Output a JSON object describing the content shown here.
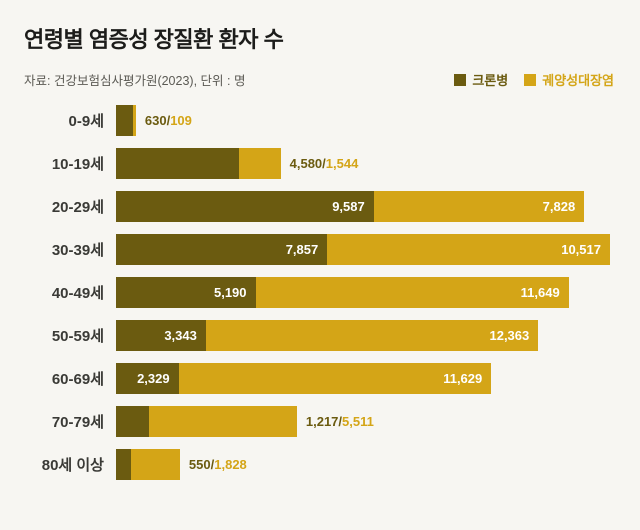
{
  "page": {
    "background": "#f7f6f2"
  },
  "chart_data": {
    "type": "bar",
    "orientation": "horizontal",
    "stacked": true,
    "title": "연령별 염증성 장질환 환자 수",
    "source": "자료: 건강보험심사평가원(2023), 단위 : 명",
    "unit": "명",
    "legend_position": "top-right",
    "grid": false,
    "xmax": 18374,
    "categories": [
      "0-9세",
      "10-19세",
      "20-29세",
      "30-39세",
      "40-49세",
      "50-59세",
      "60-69세",
      "70-79세",
      "80세 이상"
    ],
    "series": [
      {
        "name": "크론병",
        "color": "#6b5b10",
        "values": [
          630,
          4580,
          9587,
          7857,
          5190,
          3343,
          2329,
          1217,
          550
        ]
      },
      {
        "name": "궤양성대장염",
        "color": "#d4a517",
        "values": [
          109,
          1544,
          7828,
          10517,
          11649,
          12363,
          11629,
          5511,
          1828
        ]
      }
    ],
    "value_labels": [
      "630/109",
      "4,580/1,544",
      "9,587 | 7,828",
      "7,857 | 10,517",
      "5,190 | 11,649",
      "3,343 | 12,363",
      "2,329 | 11,629",
      "1,217/5,511",
      "550/1,828"
    ],
    "label_mode": [
      "outside",
      "outside",
      "inside",
      "inside",
      "inside",
      "inside",
      "inside",
      "outside",
      "outside"
    ],
    "inside_label_color": "#ffffff",
    "separator": "/"
  }
}
